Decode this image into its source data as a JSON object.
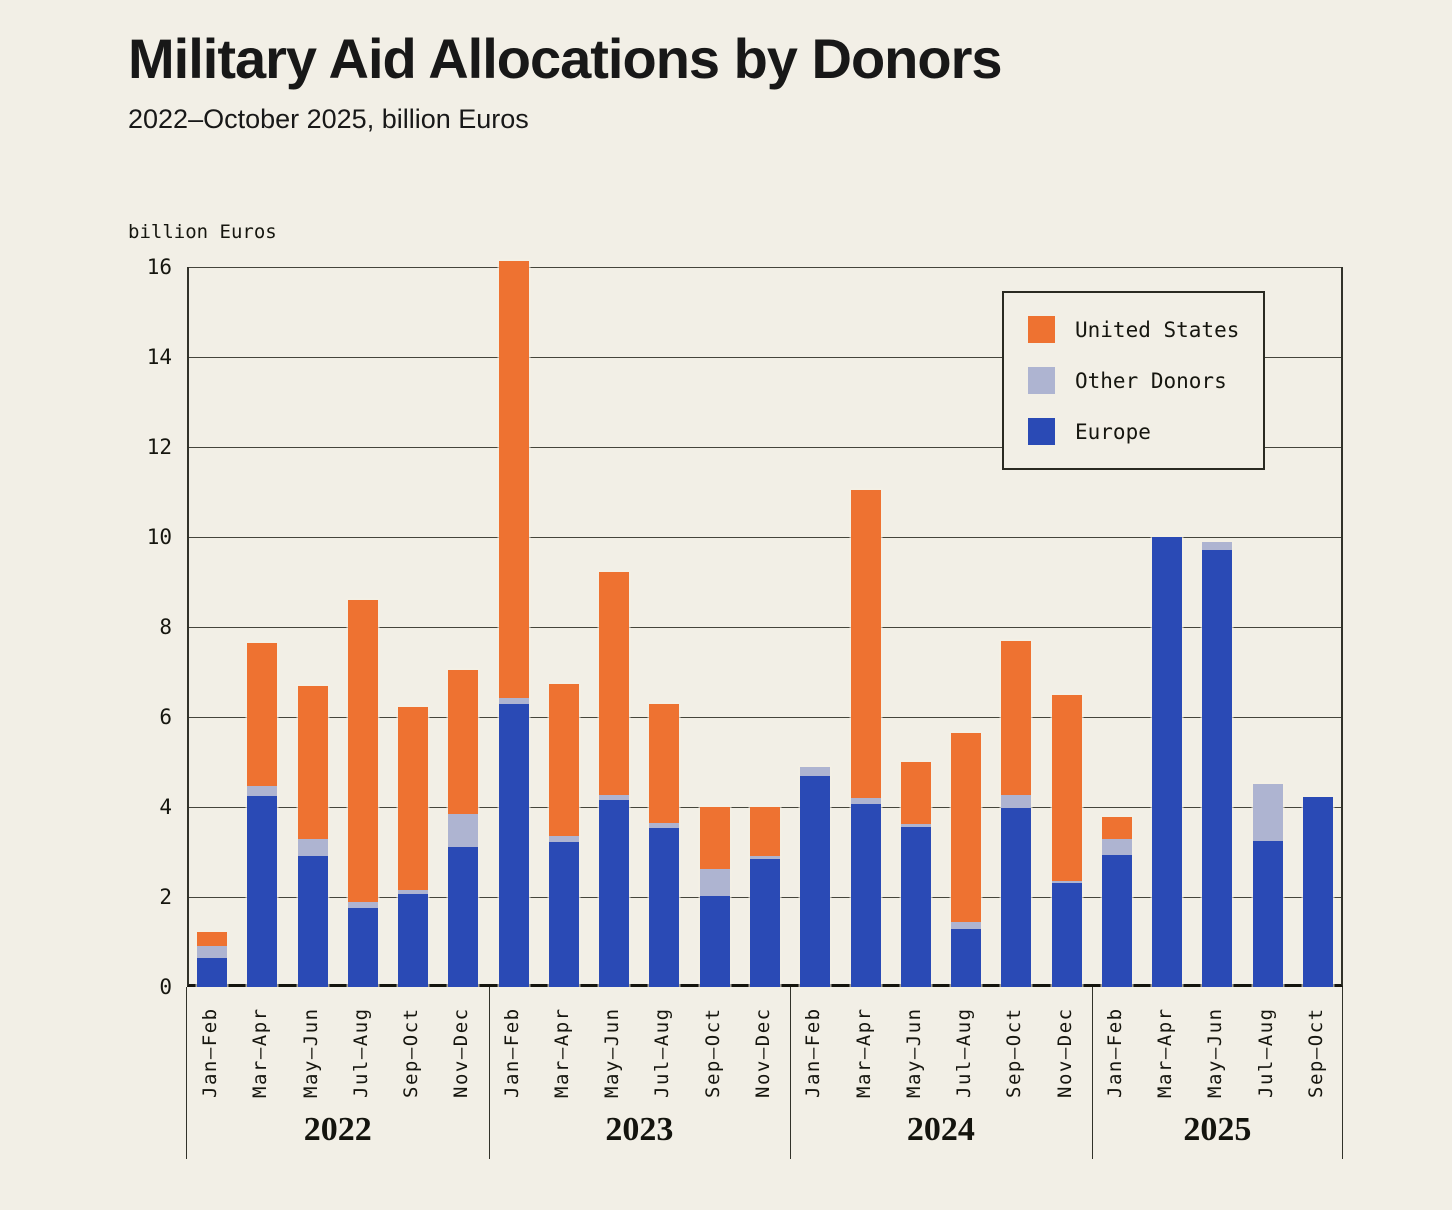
{
  "header": {
    "title": "Military Aid Allocations by Donors",
    "subtitle": "2022–October 2025, billion Euros"
  },
  "y_axis": {
    "title": "billion Euros",
    "ticks": [
      0,
      2,
      4,
      6,
      8,
      10,
      12,
      14,
      16
    ]
  },
  "legend": {
    "items": [
      {
        "label": "United States",
        "color": "#ee7231"
      },
      {
        "label": "Other Donors",
        "color": "#aeb4d1"
      },
      {
        "label": "Europe",
        "color": "#2a4ab5"
      }
    ]
  },
  "chart_data": {
    "type": "bar",
    "stacked": true,
    "title": "Military Aid Allocations by Donors",
    "subtitle": "2022–October 2025, billion Euros",
    "ylabel": "billion Euros",
    "unit": "billion Euros",
    "ylim": [
      0,
      16
    ],
    "yticks": [
      0,
      2,
      4,
      6,
      8,
      10,
      12,
      14,
      16
    ],
    "grid": true,
    "legend_position": "upper right",
    "stack_order_bottom_to_top": [
      "Europe",
      "Other Donors",
      "United States"
    ],
    "colors": {
      "Europe": "#2a4ab5",
      "Other Donors": "#aeb4d1",
      "United States": "#ee7231"
    },
    "groups": [
      {
        "year": "2022",
        "categories": [
          "Jan–Feb",
          "Mar–Apr",
          "May–Jun",
          "Jul–Aug",
          "Sep–Oct",
          "Nov–Dec"
        ],
        "series": {
          "Europe": [
            0.65,
            4.25,
            2.92,
            1.76,
            2.07,
            3.11
          ],
          "Other Donors": [
            0.27,
            0.22,
            0.37,
            0.13,
            0.08,
            0.74
          ],
          "United States": [
            0.3,
            3.18,
            3.4,
            6.72,
            4.08,
            3.2
          ]
        }
      },
      {
        "year": "2023",
        "categories": [
          "Jan–Feb",
          "Mar–Apr",
          "May–Jun",
          "Jul–Aug",
          "Sep–Oct",
          "Nov–Dec"
        ],
        "series": {
          "Europe": [
            6.28,
            3.23,
            4.16,
            3.54,
            2.03,
            2.85
          ],
          "Other Donors": [
            0.15,
            0.13,
            0.11,
            0.1,
            0.6,
            0.06
          ],
          "United States": [
            9.7,
            3.38,
            4.95,
            2.66,
            1.38,
            1.1
          ]
        }
      },
      {
        "year": "2024",
        "categories": [
          "Jan–Feb",
          "Mar–Apr",
          "May–Jun",
          "Jul–Aug",
          "Sep–Oct",
          "Nov–Dec"
        ],
        "series": {
          "Europe": [
            4.68,
            4.06,
            3.56,
            1.29,
            3.97,
            2.32
          ],
          "Other Donors": [
            0.2,
            0.13,
            0.06,
            0.15,
            0.3,
            0.03
          ],
          "United States": [
            0.0,
            6.86,
            1.37,
            4.21,
            3.43,
            4.13
          ]
        }
      },
      {
        "year": "2025",
        "categories": [
          "Jan–Feb",
          "Mar–Apr",
          "May–Jun",
          "Jul–Aug",
          "Sep–Oct"
        ],
        "series": {
          "Europe": [
            2.93,
            10.01,
            9.72,
            3.25,
            4.23
          ],
          "Other Donors": [
            0.36,
            0.0,
            0.16,
            1.26,
            0.0
          ],
          "United States": [
            0.49,
            0.0,
            0.0,
            0.0,
            0.0
          ]
        }
      }
    ]
  }
}
